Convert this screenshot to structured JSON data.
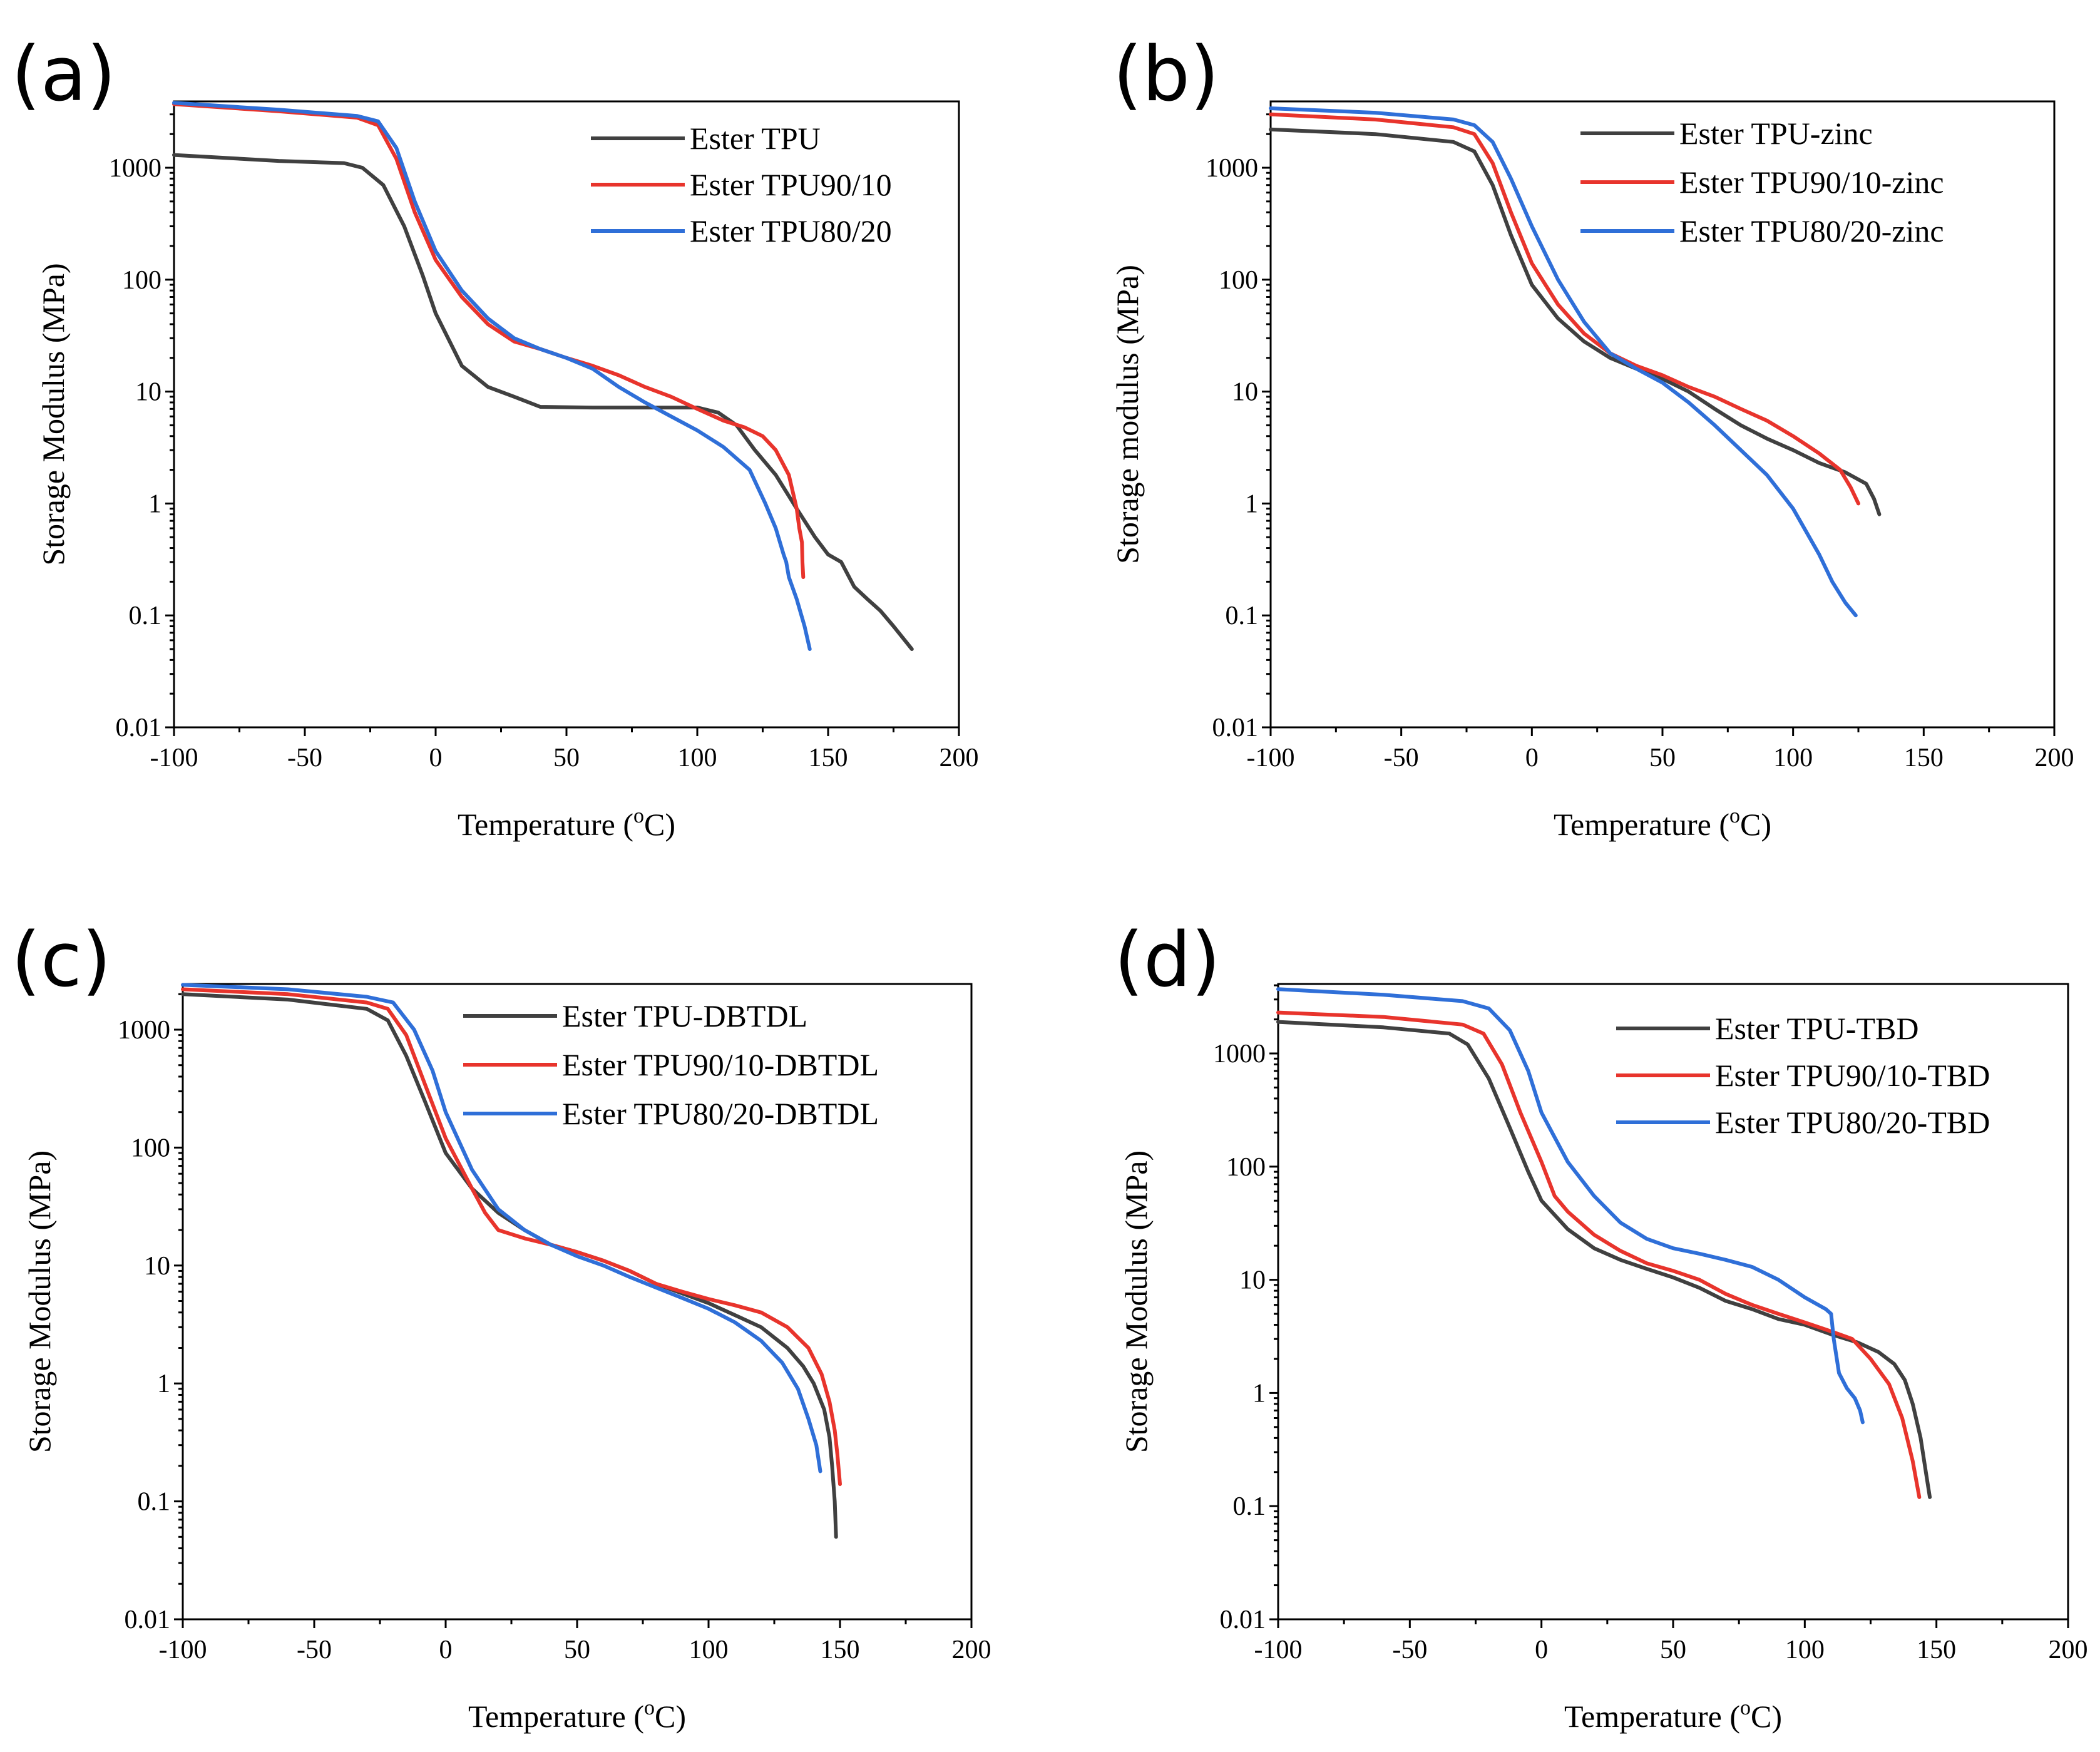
{
  "chart_data": [
    {
      "panel": "(a)",
      "type": "line",
      "xlabel": "Temperature (",
      "xlabel_unit": "o",
      "xlabel_end": "C)",
      "ylabel": "Storage Modulus (MPa)",
      "xlim": [
        -100,
        200
      ],
      "ylim": [
        0.01,
        3000
      ],
      "yscale": "log",
      "xticks": [
        "-100",
        "-50",
        "0",
        "50",
        "100",
        "150",
        "200"
      ],
      "yticks": [
        "0.01",
        "0.1",
        "1",
        "10",
        "100",
        "1000"
      ],
      "legend_position": "top-right",
      "series": [
        {
          "name": "Ester TPU",
          "color": "#404040",
          "x": [
            -100,
            -60,
            -35,
            -28,
            -20,
            -12,
            -5,
            0,
            10,
            20,
            30,
            40,
            60,
            80,
            100,
            108,
            115,
            122,
            130,
            138,
            145,
            150,
            155,
            160,
            165,
            170,
            175,
            182
          ],
          "y": [
            1300,
            1150,
            1100,
            1000,
            700,
            300,
            110,
            50,
            17,
            11,
            9,
            7.3,
            7.2,
            7.2,
            7.2,
            6.5,
            5,
            3,
            1.8,
            0.9,
            0.5,
            0.35,
            0.3,
            0.18,
            0.14,
            0.11,
            0.08,
            0.05
          ]
        },
        {
          "name": "Ester TPU90/10",
          "color": "#e8342c",
          "x": [
            -100,
            -60,
            -30,
            -22,
            -15,
            -8,
            0,
            10,
            20,
            30,
            40,
            50,
            60,
            70,
            80,
            90,
            100,
            110,
            118,
            125,
            130,
            135,
            138,
            139,
            140,
            140.2,
            140.5
          ],
          "y": [
            3700,
            3200,
            2800,
            2400,
            1200,
            400,
            150,
            70,
            40,
            28,
            24,
            20,
            17,
            14,
            11,
            9,
            7,
            5.5,
            4.8,
            4,
            3,
            1.8,
            0.9,
            0.6,
            0.45,
            0.3,
            0.22
          ]
        },
        {
          "name": "Ester TPU80/20",
          "color": "#2f6fd8",
          "x": [
            -100,
            -60,
            -30,
            -22,
            -15,
            -8,
            0,
            10,
            20,
            30,
            40,
            50,
            60,
            70,
            80,
            90,
            100,
            110,
            120,
            126,
            130,
            133,
            134,
            135,
            138,
            141,
            143
          ],
          "y": [
            3800,
            3300,
            2900,
            2600,
            1500,
            500,
            180,
            80,
            45,
            30,
            24,
            20,
            16,
            11,
            8,
            6,
            4.5,
            3.2,
            2,
            1,
            0.6,
            0.35,
            0.3,
            0.22,
            0.14,
            0.08,
            0.05
          ]
        }
      ]
    },
    {
      "panel": "(b)",
      "type": "line",
      "xlabel": "Temperature (",
      "xlabel_unit": "o",
      "xlabel_end": "C)",
      "ylabel": "Storage modulus (MPa)",
      "xlim": [
        -100,
        200
      ],
      "ylim": [
        0.01,
        3000
      ],
      "yscale": "log",
      "xticks": [
        "-100",
        "-50",
        "0",
        "50",
        "100",
        "150",
        "200"
      ],
      "yticks": [
        "0.01",
        "0.1",
        "1",
        "10",
        "100",
        "1000"
      ],
      "legend_position": "top-right",
      "series": [
        {
          "name": "Ester TPU-zinc",
          "color": "#404040",
          "x": [
            -100,
            -60,
            -30,
            -22,
            -15,
            -8,
            0,
            10,
            20,
            30,
            40,
            50,
            60,
            70,
            80,
            90,
            100,
            110,
            120,
            128,
            131,
            133
          ],
          "y": [
            2200,
            2000,
            1700,
            1400,
            700,
            250,
            90,
            45,
            28,
            20,
            16,
            13,
            10,
            7,
            5,
            3.8,
            3,
            2.3,
            1.9,
            1.5,
            1.1,
            0.8
          ]
        },
        {
          "name": "Ester TPU90/10-zinc",
          "color": "#e8342c",
          "x": [
            -100,
            -60,
            -30,
            -22,
            -15,
            -8,
            0,
            10,
            20,
            30,
            40,
            50,
            60,
            70,
            80,
            90,
            100,
            110,
            118,
            122,
            125
          ],
          "y": [
            3000,
            2700,
            2300,
            2000,
            1100,
            400,
            140,
            60,
            33,
            22,
            17,
            14,
            11,
            9,
            7,
            5.5,
            4,
            2.8,
            2,
            1.4,
            1
          ]
        },
        {
          "name": "Ester TPU80/20-zinc",
          "color": "#2f6fd8",
          "x": [
            -100,
            -60,
            -30,
            -22,
            -15,
            -8,
            0,
            10,
            20,
            30,
            40,
            50,
            60,
            70,
            80,
            90,
            100,
            110,
            115,
            120,
            124
          ],
          "y": [
            3400,
            3100,
            2700,
            2400,
            1700,
            800,
            300,
            100,
            42,
            22,
            16,
            12,
            8,
            5,
            3,
            1.8,
            0.9,
            0.35,
            0.2,
            0.13,
            0.1
          ]
        }
      ]
    },
    {
      "panel": "(c)",
      "type": "line",
      "xlabel": "Temperature (",
      "xlabel_unit": "o",
      "xlabel_end": "C)",
      "ylabel": "Storage Modulus (MPa)",
      "xlim": [
        -100,
        200
      ],
      "ylim": [
        0.01,
        2500
      ],
      "yscale": "log",
      "xticks": [
        "-100",
        "-50",
        "0",
        "50",
        "100",
        "150",
        "200"
      ],
      "yticks": [
        "0.01",
        "0.1",
        "1",
        "10",
        "100",
        "1000"
      ],
      "legend_position": "top-right",
      "series": [
        {
          "name": "Ester TPU-DBTDL",
          "color": "#404040",
          "x": [
            -100,
            -60,
            -30,
            -22,
            -15,
            -8,
            0,
            10,
            20,
            30,
            40,
            50,
            60,
            70,
            80,
            90,
            100,
            110,
            120,
            130,
            136,
            140,
            144,
            146,
            147,
            148,
            148.5
          ],
          "y": [
            2000,
            1800,
            1500,
            1200,
            600,
            250,
            90,
            45,
            28,
            20,
            15,
            13,
            11,
            9,
            7,
            5.8,
            4.8,
            3.8,
            3,
            2,
            1.4,
            1,
            0.6,
            0.35,
            0.2,
            0.1,
            0.05
          ]
        },
        {
          "name": "Ester TPU90/10-DBTDL",
          "color": "#e8342c",
          "x": [
            -100,
            -60,
            -30,
            -22,
            -15,
            -8,
            0,
            10,
            15,
            20,
            30,
            40,
            50,
            60,
            70,
            80,
            90,
            100,
            110,
            120,
            130,
            138,
            143,
            146,
            148,
            149,
            150
          ],
          "y": [
            2200,
            2000,
            1700,
            1500,
            900,
            350,
            120,
            45,
            28,
            20,
            17,
            15,
            13,
            11,
            9,
            7,
            6,
            5.2,
            4.6,
            4,
            3,
            2,
            1.2,
            0.7,
            0.4,
            0.25,
            0.14
          ]
        },
        {
          "name": "Ester TPU80/20-DBTDL",
          "color": "#2f6fd8",
          "x": [
            -100,
            -60,
            -30,
            -20,
            -12,
            -5,
            0,
            10,
            20,
            30,
            40,
            50,
            60,
            70,
            80,
            90,
            100,
            110,
            120,
            128,
            134,
            138,
            141,
            142.5
          ],
          "y": [
            2400,
            2200,
            1900,
            1700,
            1000,
            450,
            200,
            65,
            30,
            20,
            15,
            12,
            10,
            8,
            6.5,
            5.3,
            4.3,
            3.3,
            2.3,
            1.5,
            0.9,
            0.5,
            0.3,
            0.18
          ]
        }
      ]
    },
    {
      "panel": "(d)",
      "type": "line",
      "xlabel": "Temperature (",
      "xlabel_unit": "o",
      "xlabel_end": "C)",
      "ylabel": "Storage Modulus (MPa)",
      "xlim": [
        -100,
        200
      ],
      "ylim": [
        0.01,
        4000
      ],
      "yscale": "log",
      "xticks": [
        "-100",
        "-50",
        "0",
        "50",
        "100",
        "150",
        "200"
      ],
      "yticks": [
        "0.01",
        "0.1",
        "1",
        "10",
        "100",
        "1000"
      ],
      "legend_position": "top-right",
      "series": [
        {
          "name": "Ester TPU-TBD",
          "color": "#404040",
          "x": [
            -100,
            -60,
            -35,
            -28,
            -20,
            -12,
            -5,
            0,
            10,
            20,
            30,
            40,
            50,
            60,
            70,
            80,
            90,
            100,
            110,
            120,
            128,
            134,
            138,
            141,
            144,
            146,
            147.5
          ],
          "y": [
            1900,
            1700,
            1500,
            1200,
            600,
            220,
            90,
            50,
            28,
            19,
            15,
            12.5,
            10.5,
            8.5,
            6.5,
            5.5,
            4.5,
            4,
            3.3,
            2.8,
            2.3,
            1.8,
            1.3,
            0.8,
            0.4,
            0.2,
            0.12
          ]
        },
        {
          "name": "Ester TPU90/10-TBD",
          "color": "#e8342c",
          "x": [
            -100,
            -60,
            -30,
            -22,
            -15,
            -8,
            0,
            5,
            10,
            20,
            30,
            40,
            50,
            60,
            70,
            80,
            90,
            100,
            110,
            118,
            125,
            132,
            137,
            141,
            143.5
          ],
          "y": [
            2300,
            2100,
            1800,
            1500,
            800,
            300,
            110,
            55,
            40,
            25,
            18,
            14,
            12,
            10,
            7.5,
            6,
            5,
            4.2,
            3.5,
            3,
            2,
            1.2,
            0.6,
            0.25,
            0.12
          ]
        },
        {
          "name": "Ester TPU80/20-TBD",
          "color": "#2f6fd8",
          "x": [
            -100,
            -60,
            -30,
            -20,
            -12,
            -5,
            0,
            10,
            20,
            30,
            40,
            50,
            60,
            70,
            80,
            90,
            100,
            108,
            110,
            111,
            113,
            116,
            119,
            121,
            122
          ],
          "y": [
            3700,
            3300,
            2900,
            2500,
            1600,
            700,
            300,
            110,
            55,
            32,
            23,
            19,
            17,
            15,
            13,
            10,
            7,
            5.5,
            5,
            3,
            1.5,
            1.1,
            0.9,
            0.7,
            0.55
          ]
        }
      ]
    }
  ]
}
